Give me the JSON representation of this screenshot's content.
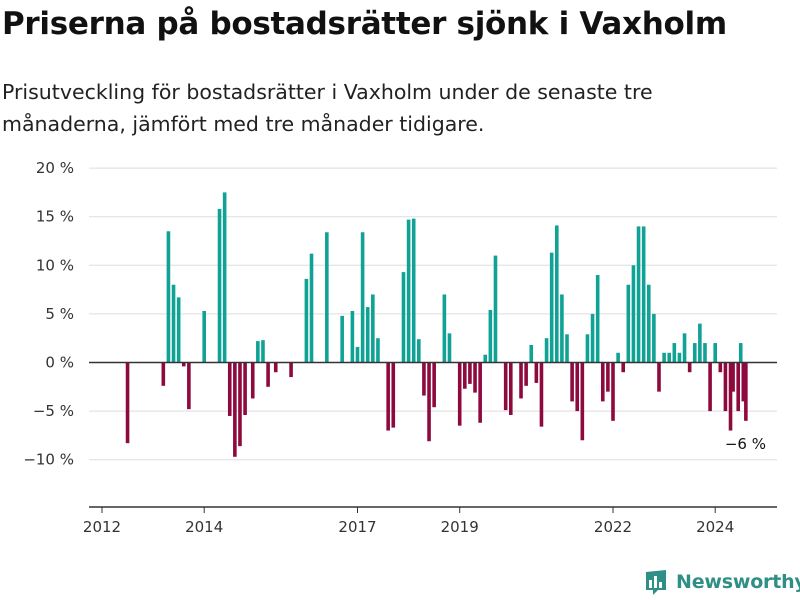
{
  "title": "Priserna på bostadsrätter sjönk i Vaxholm",
  "subtitle": "Prisutveckling för bostadsrätter i Vaxholm under de senaste tre månaderna, jämfört med tre månader tidigare.",
  "brand": {
    "name": "Newsworthy",
    "icon": "bar-chart-logo-icon"
  },
  "colors": {
    "positive": "#0fa295",
    "negative": "#8e0a3e",
    "grid": "#dddddd",
    "axis": "#333333"
  },
  "chart_data": {
    "type": "bar",
    "title": "Priserna på bostadsrätter sjönk i Vaxholm",
    "ylabel": "",
    "xlabel": "",
    "ylim": [
      -14.5,
      20
    ],
    "xlim": [
      2011.9,
      2024.9
    ],
    "yticks": [
      -10,
      -5,
      0,
      5,
      10,
      15,
      20
    ],
    "ytick_labels": [
      "−10 %",
      "−5 %",
      "0 %",
      "5 %",
      "10 %",
      "15 %",
      "20 %"
    ],
    "xticks": [
      2012,
      2014,
      2017,
      2019,
      2022,
      2024
    ],
    "xtick_labels": [
      "2012",
      "2014",
      "2017",
      "2019",
      "2022",
      "2024"
    ],
    "annotation": {
      "label": "−6 %",
      "x": 2024.6,
      "value": -6
    },
    "bars": [
      {
        "x": 2012.5,
        "value": -8.3
      },
      {
        "x": 2013.2,
        "value": -2.4
      },
      {
        "x": 2013.3,
        "value": 13.5
      },
      {
        "x": 2013.4,
        "value": 8.0
      },
      {
        "x": 2013.5,
        "value": 6.7
      },
      {
        "x": 2013.6,
        "value": -0.4
      },
      {
        "x": 2013.7,
        "value": -4.8
      },
      {
        "x": 2014.0,
        "value": 5.3
      },
      {
        "x": 2014.3,
        "value": 15.8
      },
      {
        "x": 2014.4,
        "value": 17.5
      },
      {
        "x": 2014.5,
        "value": -5.5
      },
      {
        "x": 2014.6,
        "value": -9.7
      },
      {
        "x": 2014.7,
        "value": -8.6
      },
      {
        "x": 2014.8,
        "value": -5.4
      },
      {
        "x": 2014.95,
        "value": -3.7
      },
      {
        "x": 2015.05,
        "value": 2.2
      },
      {
        "x": 2015.15,
        "value": 2.3
      },
      {
        "x": 2015.25,
        "value": -2.5
      },
      {
        "x": 2015.4,
        "value": -1.0
      },
      {
        "x": 2015.7,
        "value": -1.5
      },
      {
        "x": 2016.0,
        "value": 8.6
      },
      {
        "x": 2016.1,
        "value": 11.2
      },
      {
        "x": 2016.4,
        "value": 13.4
      },
      {
        "x": 2016.7,
        "value": 4.8
      },
      {
        "x": 2016.9,
        "value": 5.3
      },
      {
        "x": 2017.0,
        "value": 1.6
      },
      {
        "x": 2017.1,
        "value": 13.4
      },
      {
        "x": 2017.2,
        "value": 5.7
      },
      {
        "x": 2017.3,
        "value": 7.0
      },
      {
        "x": 2017.4,
        "value": 2.5
      },
      {
        "x": 2017.6,
        "value": -7.0
      },
      {
        "x": 2017.7,
        "value": -6.7
      },
      {
        "x": 2017.9,
        "value": 9.3
      },
      {
        "x": 2018.0,
        "value": 14.7
      },
      {
        "x": 2018.1,
        "value": 14.8
      },
      {
        "x": 2018.2,
        "value": 2.4
      },
      {
        "x": 2018.3,
        "value": -3.4
      },
      {
        "x": 2018.4,
        "value": -8.1
      },
      {
        "x": 2018.5,
        "value": -4.6
      },
      {
        "x": 2018.7,
        "value": 7.0
      },
      {
        "x": 2018.8,
        "value": 3.0
      },
      {
        "x": 2019.0,
        "value": -6.5
      },
      {
        "x": 2019.1,
        "value": -2.7
      },
      {
        "x": 2019.2,
        "value": -2.2
      },
      {
        "x": 2019.3,
        "value": -3.1
      },
      {
        "x": 2019.4,
        "value": -6.2
      },
      {
        "x": 2019.5,
        "value": 0.8
      },
      {
        "x": 2019.6,
        "value": 5.4
      },
      {
        "x": 2019.7,
        "value": 11.0
      },
      {
        "x": 2019.9,
        "value": -4.9
      },
      {
        "x": 2020.0,
        "value": -5.4
      },
      {
        "x": 2020.2,
        "value": -3.7
      },
      {
        "x": 2020.3,
        "value": -2.4
      },
      {
        "x": 2020.4,
        "value": 1.8
      },
      {
        "x": 2020.5,
        "value": -2.1
      },
      {
        "x": 2020.6,
        "value": -6.6
      },
      {
        "x": 2020.7,
        "value": 2.5
      },
      {
        "x": 2020.8,
        "value": 11.3
      },
      {
        "x": 2020.9,
        "value": 14.1
      },
      {
        "x": 2021.0,
        "value": 7.0
      },
      {
        "x": 2021.1,
        "value": 2.9
      },
      {
        "x": 2021.2,
        "value": -4.0
      },
      {
        "x": 2021.3,
        "value": -5.0
      },
      {
        "x": 2021.4,
        "value": -8.0
      },
      {
        "x": 2021.5,
        "value": 2.9
      },
      {
        "x": 2021.6,
        "value": 5.0
      },
      {
        "x": 2021.7,
        "value": 9.0
      },
      {
        "x": 2021.8,
        "value": -4.0
      },
      {
        "x": 2021.9,
        "value": -3.0
      },
      {
        "x": 2022.0,
        "value": -6.0
      },
      {
        "x": 2022.1,
        "value": 1.0
      },
      {
        "x": 2022.2,
        "value": -1.0
      },
      {
        "x": 2022.3,
        "value": 8.0
      },
      {
        "x": 2022.4,
        "value": 10.0
      },
      {
        "x": 2022.5,
        "value": 14.0
      },
      {
        "x": 2022.6,
        "value": 14.0
      },
      {
        "x": 2022.7,
        "value": 8.0
      },
      {
        "x": 2022.8,
        "value": 5.0
      },
      {
        "x": 2022.9,
        "value": -3.0
      },
      {
        "x": 2023.0,
        "value": 1.0
      },
      {
        "x": 2023.1,
        "value": 1.0
      },
      {
        "x": 2023.2,
        "value": 2.0
      },
      {
        "x": 2023.3,
        "value": 1.0
      },
      {
        "x": 2023.4,
        "value": 3.0
      },
      {
        "x": 2023.5,
        "value": -1.0
      },
      {
        "x": 2023.6,
        "value": 2.0
      },
      {
        "x": 2023.7,
        "value": 4.0
      },
      {
        "x": 2023.8,
        "value": 2.0
      },
      {
        "x": 2023.9,
        "value": -5.0
      },
      {
        "x": 2024.0,
        "value": 2.0
      },
      {
        "x": 2024.1,
        "value": -1.0
      },
      {
        "x": 2024.2,
        "value": -5.0
      },
      {
        "x": 2024.3,
        "value": -7.0
      },
      {
        "x": 2024.35,
        "value": -3.0
      },
      {
        "x": 2024.45,
        "value": -5.0
      },
      {
        "x": 2024.5,
        "value": 2.0
      },
      {
        "x": 2024.55,
        "value": -4.0
      },
      {
        "x": 2024.6,
        "value": -6.0
      }
    ]
  }
}
